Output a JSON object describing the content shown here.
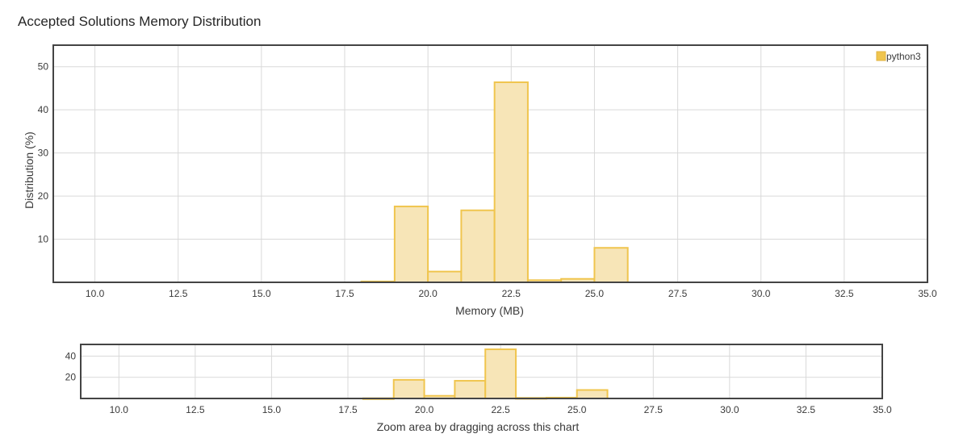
{
  "title": "Accepted Solutions Memory Distribution",
  "colors": {
    "bar_fill": "#f7e5b7",
    "bar_stroke": "#f0c54e",
    "grid": "#d9d9d9",
    "frame": "#444444"
  },
  "chart_data": [
    {
      "type": "bar",
      "title": "",
      "xlabel": "Memory (MB)",
      "ylabel": "Distribution (%)",
      "xlim": [
        8.75,
        35
      ],
      "ylim": [
        0,
        55
      ],
      "xticks": [
        "10.0",
        "12.5",
        "15.0",
        "17.5",
        "20.0",
        "22.5",
        "25.0",
        "27.5",
        "30.0",
        "32.5",
        "35.0"
      ],
      "yticks": [
        "10",
        "20",
        "30",
        "40",
        "50"
      ],
      "grid": true,
      "legend": {
        "position": "top-right",
        "entries": [
          "python3"
        ]
      },
      "series": [
        {
          "name": "python3",
          "bins": [
            [
              18,
              19
            ],
            [
              19,
              20
            ],
            [
              20,
              21
            ],
            [
              21,
              22
            ],
            [
              22,
              23
            ],
            [
              23,
              24
            ],
            [
              24,
              25
            ],
            [
              25,
              26
            ]
          ],
          "values": [
            0.2,
            17.6,
            2.5,
            16.7,
            46.4,
            0.5,
            0.8,
            8.0
          ]
        }
      ]
    },
    {
      "type": "bar",
      "title": "",
      "xlabel": "Zoom area by dragging across this chart",
      "ylabel": "",
      "xlim": [
        8.75,
        35
      ],
      "ylim": [
        0,
        51
      ],
      "xticks": [
        "10.0",
        "12.5",
        "15.0",
        "17.5",
        "20.0",
        "22.5",
        "25.0",
        "27.5",
        "30.0",
        "32.5",
        "35.0"
      ],
      "yticks": [
        "20",
        "40"
      ],
      "grid": true,
      "series": [
        {
          "name": "python3",
          "bins": [
            [
              18,
              19
            ],
            [
              19,
              20
            ],
            [
              20,
              21
            ],
            [
              21,
              22
            ],
            [
              22,
              23
            ],
            [
              23,
              24
            ],
            [
              24,
              25
            ],
            [
              25,
              26
            ]
          ],
          "values": [
            0.2,
            17.6,
            2.5,
            16.7,
            46.4,
            0.5,
            0.8,
            8.0
          ]
        }
      ]
    }
  ]
}
